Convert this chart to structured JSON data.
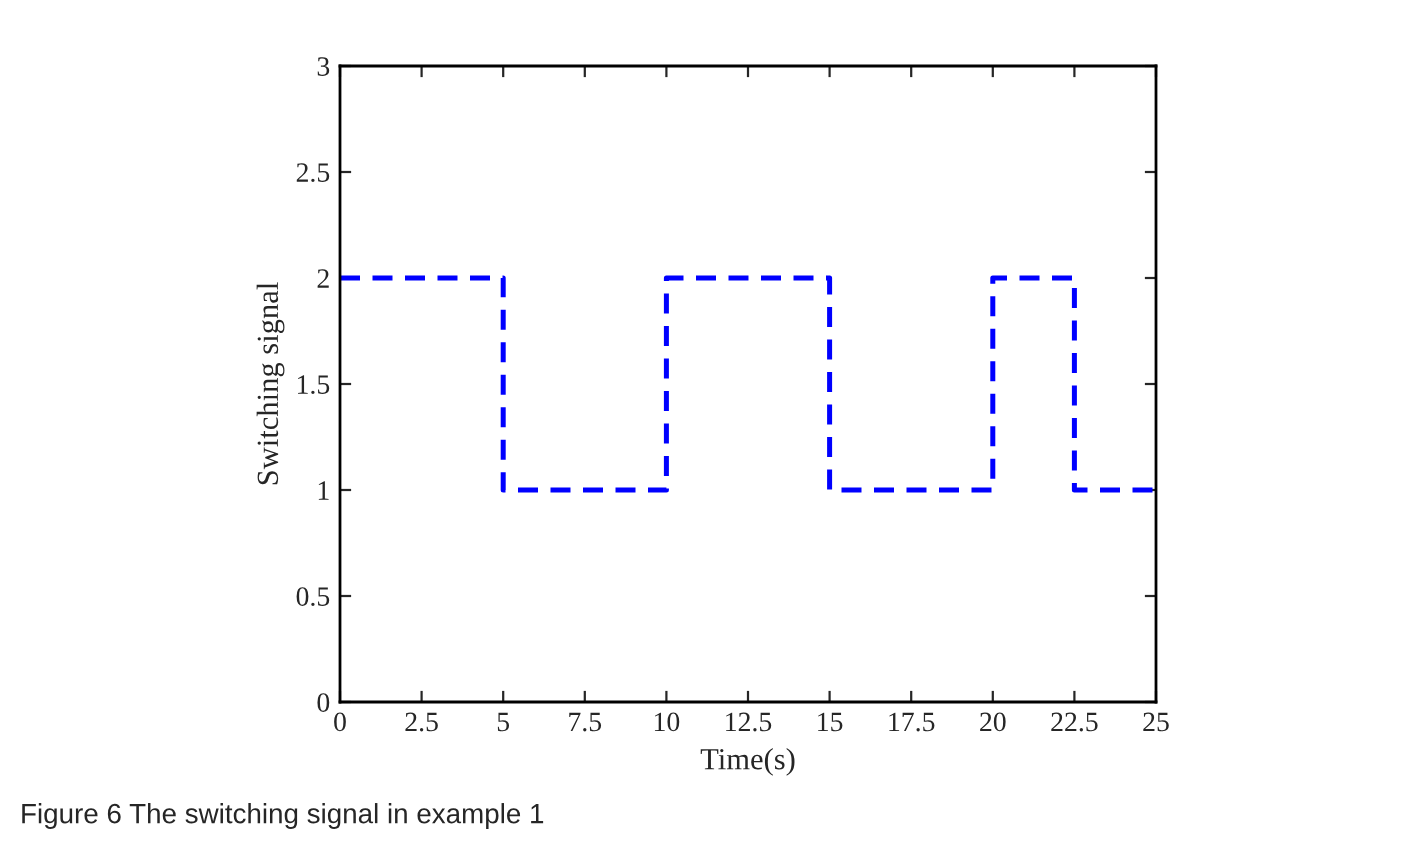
{
  "chart_data": {
    "type": "step",
    "xlabel": "Time(s)",
    "ylabel": "Switching signal",
    "x": [
      0,
      5,
      10,
      15,
      20,
      22.5,
      25
    ],
    "series": [
      {
        "color": "#0000ff",
        "values": [
          2,
          1,
          2,
          1,
          2,
          1,
          1
        ]
      }
    ],
    "line_style": "dashed",
    "marker": "none",
    "grid": false,
    "legend": false,
    "xlim": [
      0,
      25
    ],
    "xticks": [
      0,
      2.5,
      5,
      7.5,
      10,
      12.5,
      15,
      17.5,
      20,
      22.5,
      25
    ],
    "ylim": [
      0,
      3
    ],
    "yticks": [
      0,
      0.5,
      1,
      1.5,
      2,
      2.5,
      3
    ],
    "annotations": [
      "Figure 6 The switching signal in example 1"
    ]
  }
}
